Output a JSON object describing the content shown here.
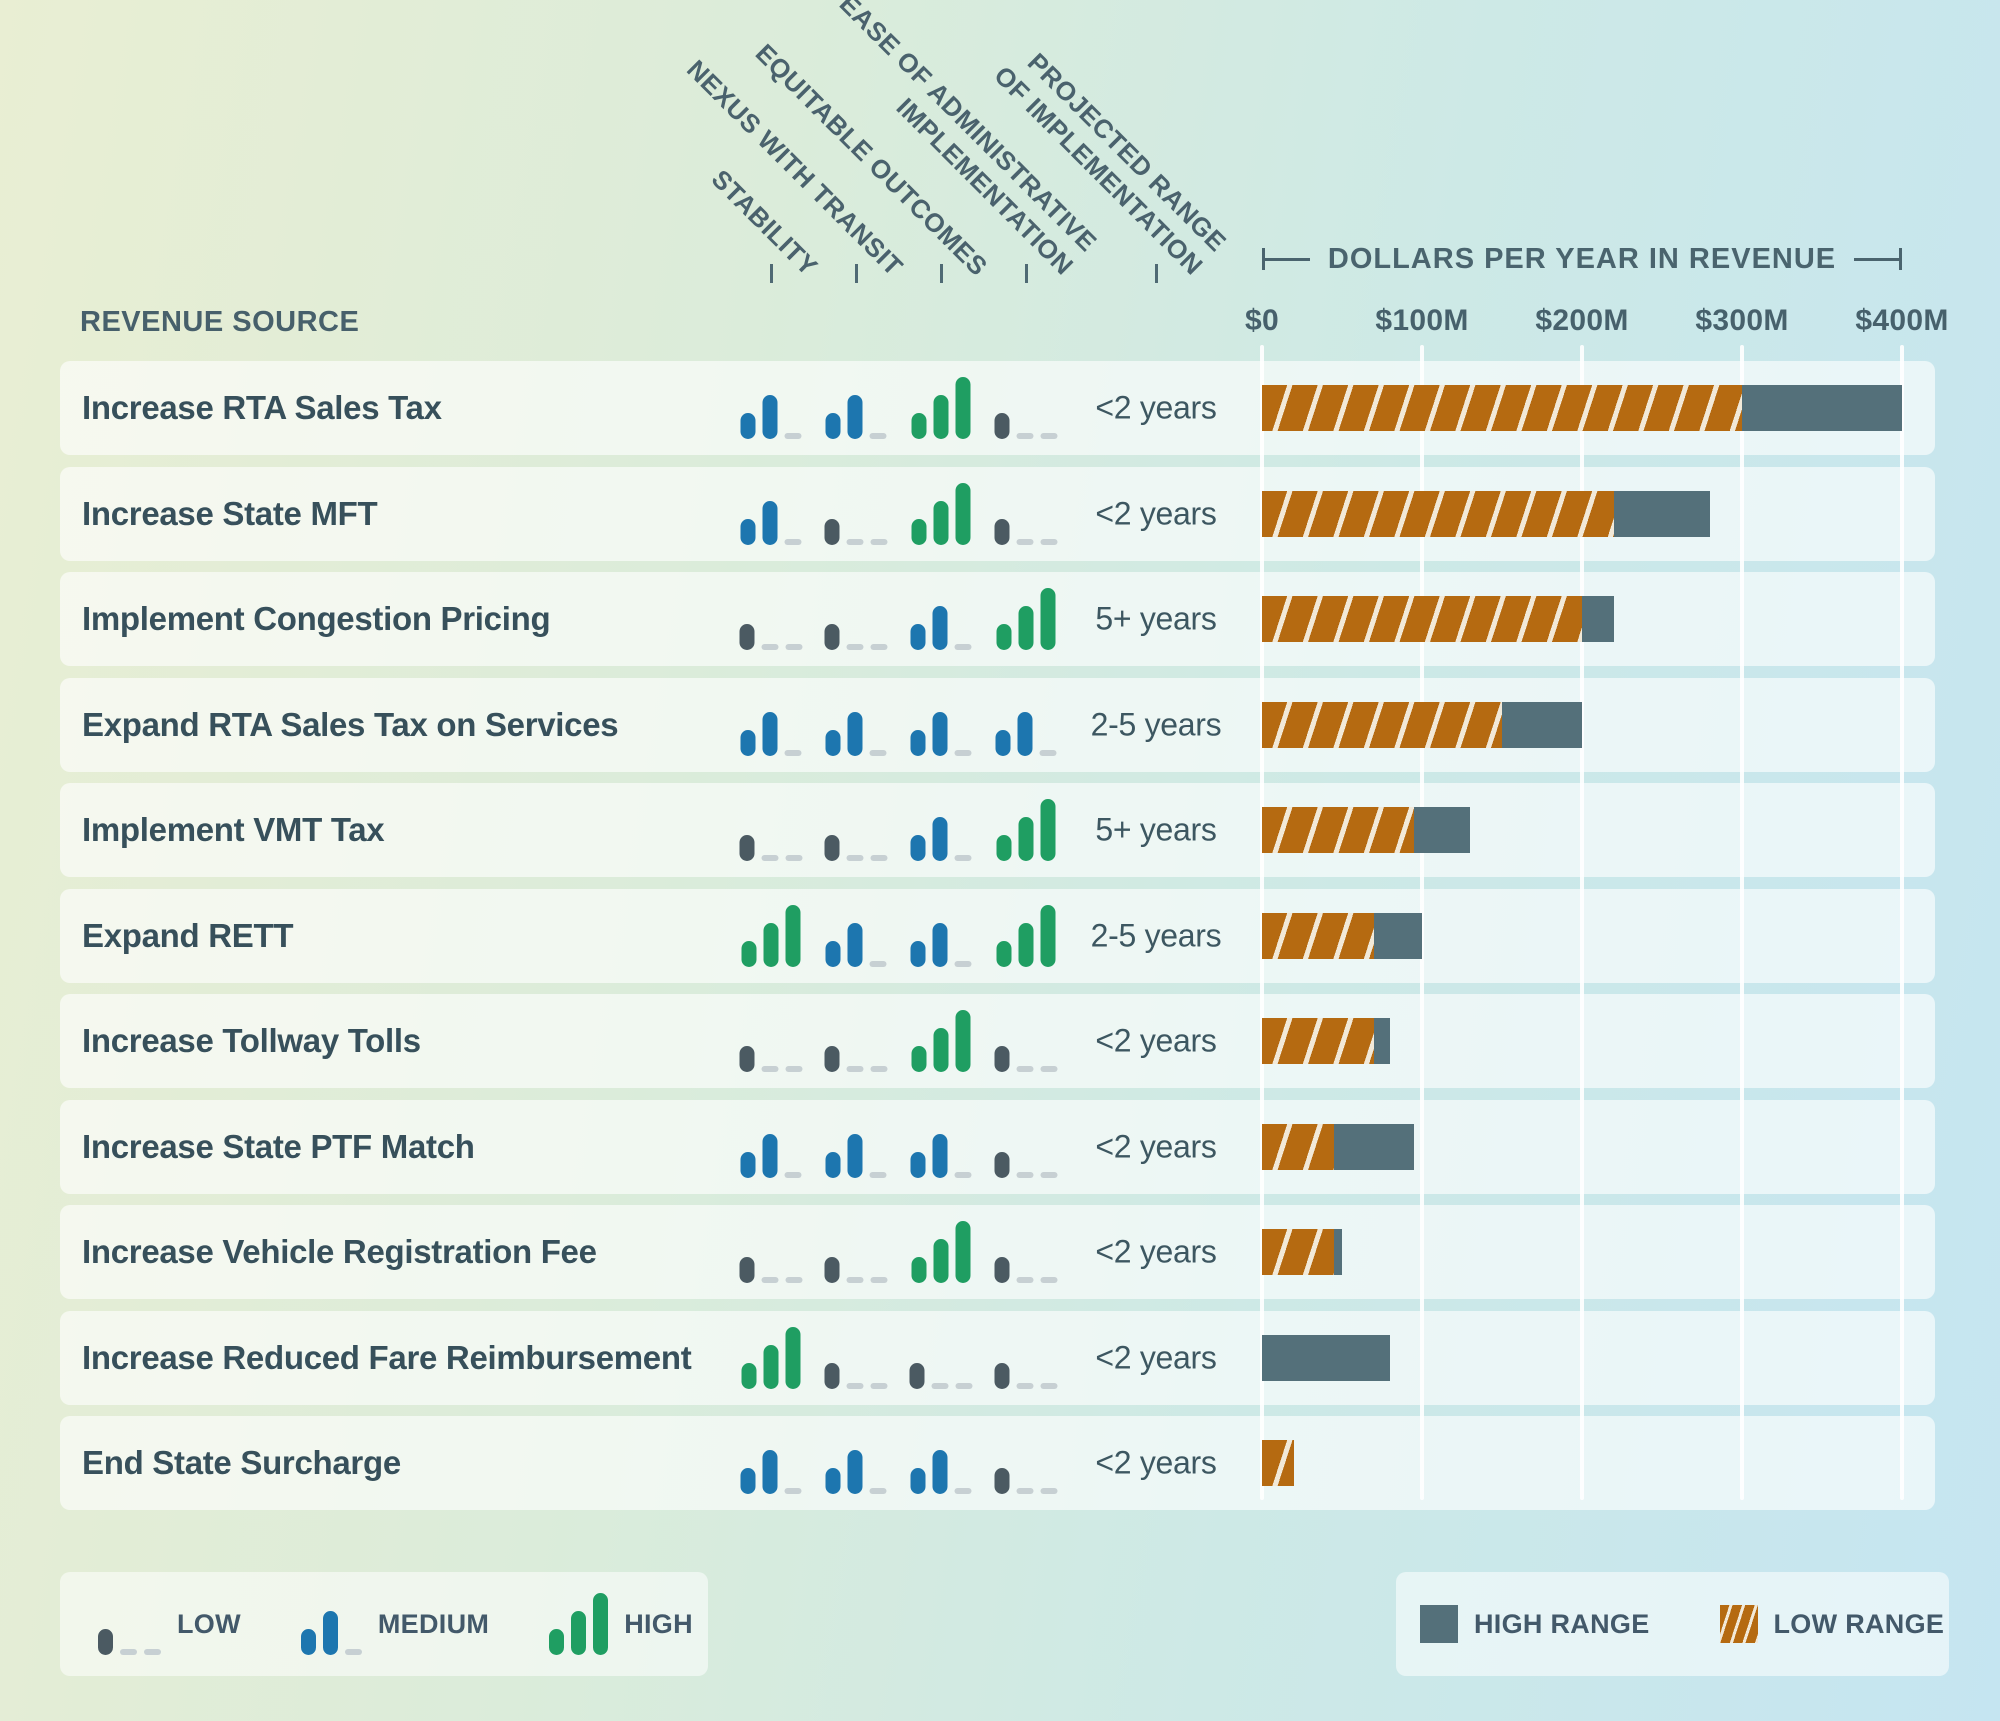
{
  "header": {
    "revenue_source_label": "REVENUE SOURCE",
    "criteria_columns": [
      {
        "id": "stability",
        "lines": [
          "STABILITY"
        ]
      },
      {
        "id": "nexus",
        "lines": [
          "NEXUS WITH TRANSIT"
        ]
      },
      {
        "id": "equitable",
        "lines": [
          "EQUITABLE OUTCOMES"
        ]
      },
      {
        "id": "ease",
        "lines": [
          "EASE OF ADMINISTRATIVE",
          "IMPLEMENTATION"
        ]
      },
      {
        "id": "projected",
        "lines": [
          "PROJECTED RANGE",
          "OF IMPLEMENTATION"
        ]
      }
    ]
  },
  "axis": {
    "title": "DOLLARS PER YEAR IN REVENUE",
    "tick_labels": [
      "$0",
      "$100M",
      "$200M",
      "$300M",
      "$400M"
    ],
    "range_millions": [
      0,
      400
    ]
  },
  "rows": [
    {
      "label": "Increase RTA Sales Tax",
      "ratings": {
        "stability": "medium",
        "nexus": "medium",
        "equitable": "high",
        "ease": "low"
      },
      "years": "<2 years",
      "low_m": 300,
      "high_m": 400
    },
    {
      "label": "Increase State MFT",
      "ratings": {
        "stability": "medium",
        "nexus": "low",
        "equitable": "high",
        "ease": "low"
      },
      "years": "<2 years",
      "low_m": 220,
      "high_m": 280
    },
    {
      "label": "Implement Congestion Pricing",
      "ratings": {
        "stability": "low",
        "nexus": "low",
        "equitable": "medium",
        "ease": "high"
      },
      "years": "5+ years",
      "low_m": 200,
      "high_m": 220
    },
    {
      "label": "Expand RTA Sales Tax on Services",
      "ratings": {
        "stability": "medium",
        "nexus": "medium",
        "equitable": "medium",
        "ease": "medium"
      },
      "years": "2-5 years",
      "low_m": 150,
      "high_m": 200
    },
    {
      "label": "Implement VMT Tax",
      "ratings": {
        "stability": "low",
        "nexus": "low",
        "equitable": "medium",
        "ease": "high"
      },
      "years": "5+ years",
      "low_m": 95,
      "high_m": 130
    },
    {
      "label": "Expand RETT",
      "ratings": {
        "stability": "high",
        "nexus": "medium",
        "equitable": "medium",
        "ease": "high"
      },
      "years": "2-5 years",
      "low_m": 70,
      "high_m": 100
    },
    {
      "label": "Increase Tollway Tolls",
      "ratings": {
        "stability": "low",
        "nexus": "low",
        "equitable": "high",
        "ease": "low"
      },
      "years": "<2 years",
      "low_m": 70,
      "high_m": 80
    },
    {
      "label": "Increase State PTF Match",
      "ratings": {
        "stability": "medium",
        "nexus": "medium",
        "equitable": "medium",
        "ease": "low"
      },
      "years": "<2 years",
      "low_m": 45,
      "high_m": 95
    },
    {
      "label": "Increase Vehicle Registration Fee",
      "ratings": {
        "stability": "low",
        "nexus": "low",
        "equitable": "high",
        "ease": "low"
      },
      "years": "<2 years",
      "low_m": 45,
      "high_m": 50
    },
    {
      "label": "Increase Reduced Fare Reimbursement",
      "ratings": {
        "stability": "high",
        "nexus": "low",
        "equitable": "low",
        "ease": "low"
      },
      "years": "<2 years",
      "low_m": 0,
      "high_m": 80
    },
    {
      "label": "End State Surcharge",
      "ratings": {
        "stability": "medium",
        "nexus": "medium",
        "equitable": "medium",
        "ease": "low"
      },
      "years": "<2 years",
      "low_m": 20,
      "high_m": 20
    }
  ],
  "rating_legend": [
    {
      "level": "low",
      "label": "LOW"
    },
    {
      "level": "medium",
      "label": "MEDIUM"
    },
    {
      "level": "high",
      "label": "HIGH"
    }
  ],
  "range_legend": [
    {
      "id": "high-range",
      "label": "HIGH RANGE"
    },
    {
      "id": "low-range",
      "label": "LOW RANGE"
    }
  ],
  "colors": {
    "rating_blue": "#1d76af",
    "rating_green": "#1f9e62",
    "rating_dot_slate": "#4b5a62",
    "rating_dash_grey": "#c7d0d3",
    "low_range_orange": "#b56a11",
    "hatch_gap_cream": "#f2e9d8",
    "high_range_slate": "#54707a",
    "text_slate": "#3a525d"
  },
  "chart_data": {
    "type": "bar",
    "orientation": "horizontal",
    "title": "DOLLARS PER YEAR IN REVENUE",
    "xlabel": "Dollars per year in revenue",
    "ylabel": "Revenue source",
    "x_tick_labels": [
      "$0",
      "$100M",
      "$200M",
      "$300M",
      "$400M"
    ],
    "xlim_millions": [
      0,
      400
    ],
    "grid": true,
    "legend_position": "bottom-right",
    "categories": [
      "Increase RTA Sales Tax",
      "Increase State MFT",
      "Implement Congestion Pricing",
      "Expand RTA Sales Tax on Services",
      "Implement VMT Tax",
      "Expand RETT",
      "Increase Tollway Tolls",
      "Increase State PTF Match",
      "Increase Vehicle Registration Fee",
      "Increase Reduced Fare Reimbursement",
      "End State Surcharge"
    ],
    "series": [
      {
        "name": "LOW RANGE",
        "style": "orange-hatched",
        "values_millions": [
          300,
          220,
          200,
          150,
          95,
          70,
          70,
          45,
          45,
          0,
          20
        ]
      },
      {
        "name": "HIGH RANGE",
        "style": "solid-slate",
        "values_millions": [
          400,
          280,
          220,
          200,
          130,
          100,
          80,
          95,
          50,
          80,
          20
        ]
      }
    ],
    "criteria_ratings": {
      "columns": [
        "STABILITY",
        "NEXUS WITH TRANSIT",
        "EQUITABLE OUTCOMES",
        "EASE OF ADMINISTRATIVE IMPLEMENTATION",
        "PROJECTED RANGE OF IMPLEMENTATION"
      ],
      "scale": [
        "LOW",
        "MEDIUM",
        "HIGH"
      ]
    }
  }
}
